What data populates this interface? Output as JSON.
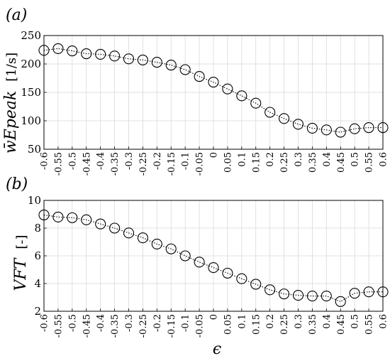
{
  "chart_data": [
    {
      "type": "line",
      "panel_label": "(a)",
      "ylabel": "w̄Epeak",
      "ylabel_unit": "[1/s]",
      "xlabel": "",
      "x": [
        -0.6,
        -0.55,
        -0.5,
        -0.45,
        -0.4,
        -0.35,
        -0.3,
        -0.25,
        -0.2,
        -0.15,
        -0.1,
        -0.05,
        0,
        0.05,
        0.1,
        0.15,
        0.2,
        0.25,
        0.3,
        0.35,
        0.4,
        0.45,
        0.5,
        0.55,
        0.6
      ],
      "x_tick_labels": [
        "-0.6",
        "-0.55",
        "-0.5",
        "-0.45",
        "-0.4",
        "-0.35",
        "-0.3",
        "-0.25",
        "-0.2",
        "-0.15",
        "-0.1",
        "-0.05",
        "0",
        "0.05",
        "0.1",
        "0.15",
        "0.2",
        "0.25",
        "0.3",
        "0.35",
        "0.4",
        "0.45",
        "0.5",
        "0.55",
        "0.6"
      ],
      "y": [
        224,
        227,
        223,
        218,
        217,
        214,
        209,
        207,
        203,
        198,
        190,
        178,
        168,
        156,
        144,
        131,
        115,
        104,
        94,
        87,
        84,
        80,
        86,
        88,
        88
      ],
      "ylim": [
        50,
        250
      ],
      "y_ticks": [
        50,
        100,
        150,
        200,
        250
      ],
      "xlim": [
        -0.6,
        0.6
      ],
      "grid": true,
      "marker": "open-circle",
      "line_style": "dotted"
    },
    {
      "type": "line",
      "panel_label": "(b)",
      "ylabel": "VFT",
      "ylabel_unit": "[-]",
      "xlabel": "ϵ",
      "x": [
        -0.6,
        -0.55,
        -0.5,
        -0.45,
        -0.4,
        -0.35,
        -0.3,
        -0.25,
        -0.2,
        -0.15,
        -0.1,
        -0.05,
        0,
        0.05,
        0.1,
        0.15,
        0.2,
        0.25,
        0.3,
        0.35,
        0.4,
        0.45,
        0.5,
        0.55,
        0.6
      ],
      "x_tick_labels": [
        "-0.6",
        "-0.55",
        "-0.5",
        "-0.45",
        "-0.4",
        "-0.35",
        "-0.3",
        "-0.25",
        "-0.2",
        "-0.15",
        "-0.1",
        "-0.05",
        "0",
        "0.05",
        "0.1",
        "0.15",
        "0.2",
        "0.25",
        "0.3",
        "0.35",
        "0.4",
        "0.45",
        "0.5",
        "0.55",
        "0.6"
      ],
      "y": [
        8.95,
        8.8,
        8.75,
        8.6,
        8.3,
        8.0,
        7.65,
        7.3,
        6.85,
        6.5,
        6.0,
        5.55,
        5.15,
        4.75,
        4.35,
        3.95,
        3.55,
        3.25,
        3.15,
        3.1,
        3.1,
        2.7,
        3.3,
        3.4,
        3.4
      ],
      "ylim": [
        2,
        10
      ],
      "y_ticks": [
        2,
        4,
        6,
        8,
        10
      ],
      "xlim": [
        -0.6,
        0.6
      ],
      "grid": true,
      "marker": "open-circle",
      "line_style": "dotted"
    }
  ]
}
